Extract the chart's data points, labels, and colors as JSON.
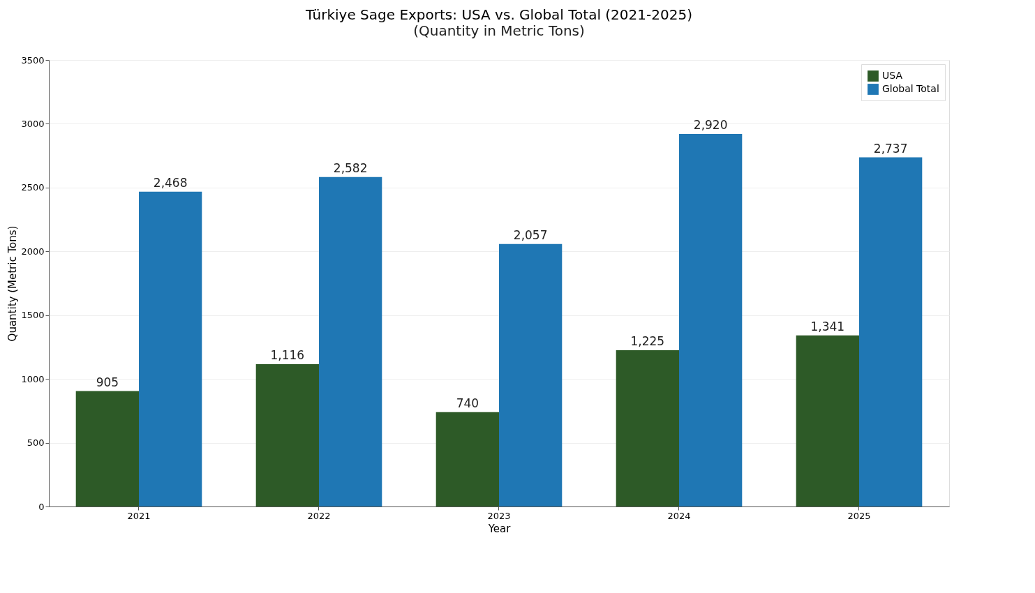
{
  "chart_data": {
    "type": "bar",
    "title": "Türkiye Sage Exports: USA vs. Global Total (2021-2025)",
    "subtitle": "(Quantity in Metric Tons)",
    "xlabel": "Year",
    "ylabel": "Quantity (Metric Tons)",
    "categories": [
      "2021",
      "2022",
      "2023",
      "2024",
      "2025"
    ],
    "series": [
      {
        "name": "USA",
        "color": "#2d5a27",
        "values": [
          905,
          1116,
          740,
          1225,
          1341
        ],
        "value_labels": [
          "905",
          "1,116",
          "740",
          "1,225",
          "1,341"
        ]
      },
      {
        "name": "Global Total",
        "color": "#1f77b4",
        "values": [
          2468,
          2582,
          2057,
          2920,
          2737
        ],
        "value_labels": [
          "2,468",
          "2,582",
          "2,057",
          "2,920",
          "2,737"
        ]
      }
    ],
    "ylim": [
      0,
      3500
    ],
    "yticks": [
      0,
      500,
      1000,
      1500,
      2000,
      2500,
      3000,
      3500
    ],
    "grid": "y",
    "legend": "top right"
  }
}
